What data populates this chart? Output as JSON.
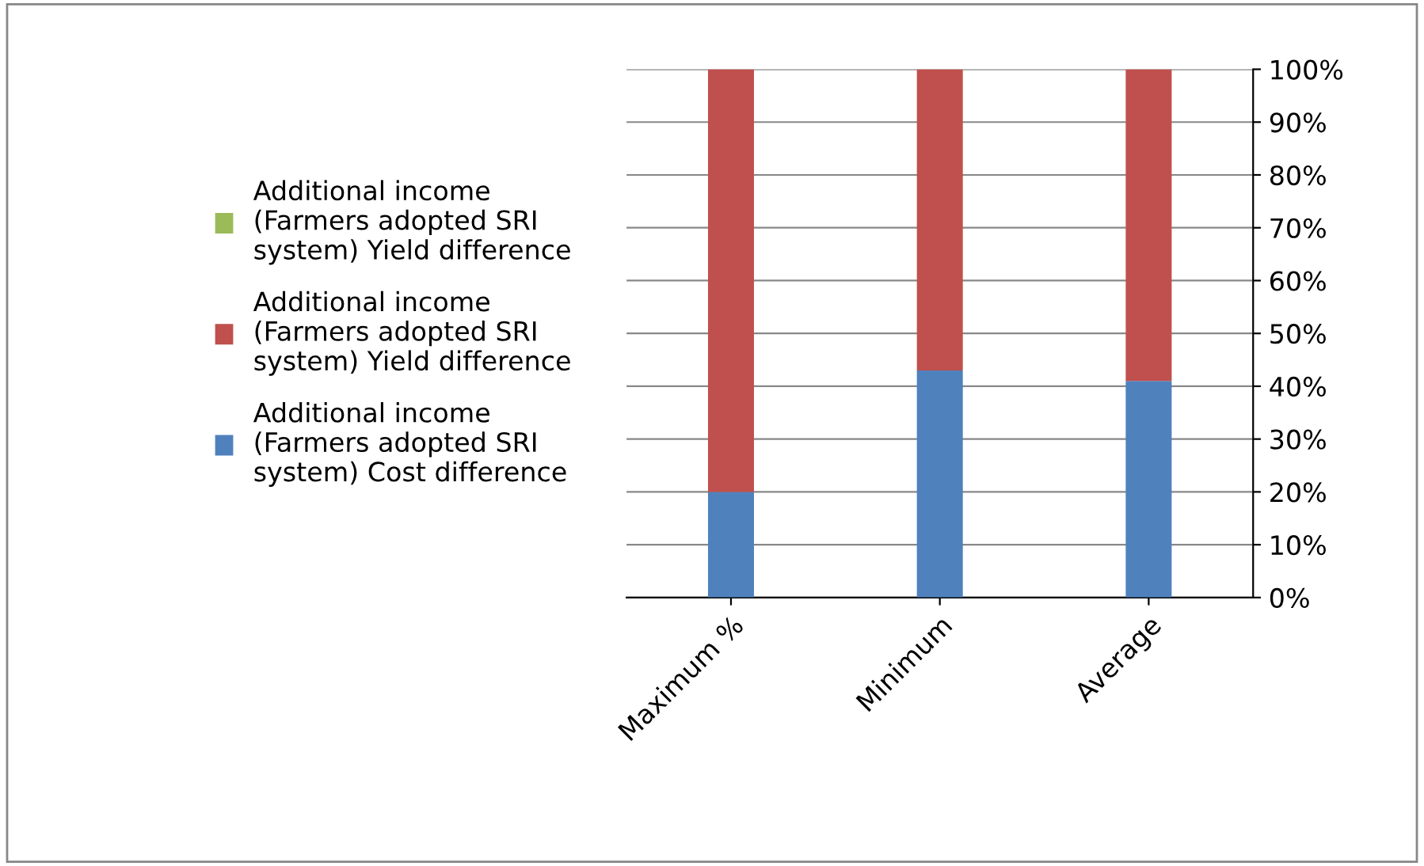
{
  "chart_data": {
    "type": "bar",
    "stacked": true,
    "categories": [
      "Maximum %",
      "Minimum",
      "Average"
    ],
    "series": [
      {
        "name": "Additional income (Farmers adopted SRI system) Cost difference",
        "color": "#4f81bd",
        "values": [
          20,
          43,
          41
        ]
      },
      {
        "name": "Additional income (Farmers adopted SRI system) Yield difference",
        "color": "#c0504d",
        "values": [
          80,
          57,
          59
        ]
      },
      {
        "name": "Additional income (Farmers adopted SRI system) Yield difference",
        "color": "#9bbb59",
        "values": [
          0,
          0,
          0
        ]
      }
    ],
    "ylim": [
      0,
      100
    ],
    "yticks": [
      {
        "value": 0,
        "label": "0%"
      },
      {
        "value": 10,
        "label": "10%"
      },
      {
        "value": 20,
        "label": "20%"
      },
      {
        "value": 30,
        "label": "30%"
      },
      {
        "value": 40,
        "label": "40%"
      },
      {
        "value": 50,
        "label": "50%"
      },
      {
        "value": 60,
        "label": "60%"
      },
      {
        "value": 70,
        "label": "70%"
      },
      {
        "value": 80,
        "label": "80%"
      },
      {
        "value": 90,
        "label": "90%"
      },
      {
        "value": 100,
        "label": "100%"
      }
    ],
    "grid": "y",
    "legend": "left"
  }
}
